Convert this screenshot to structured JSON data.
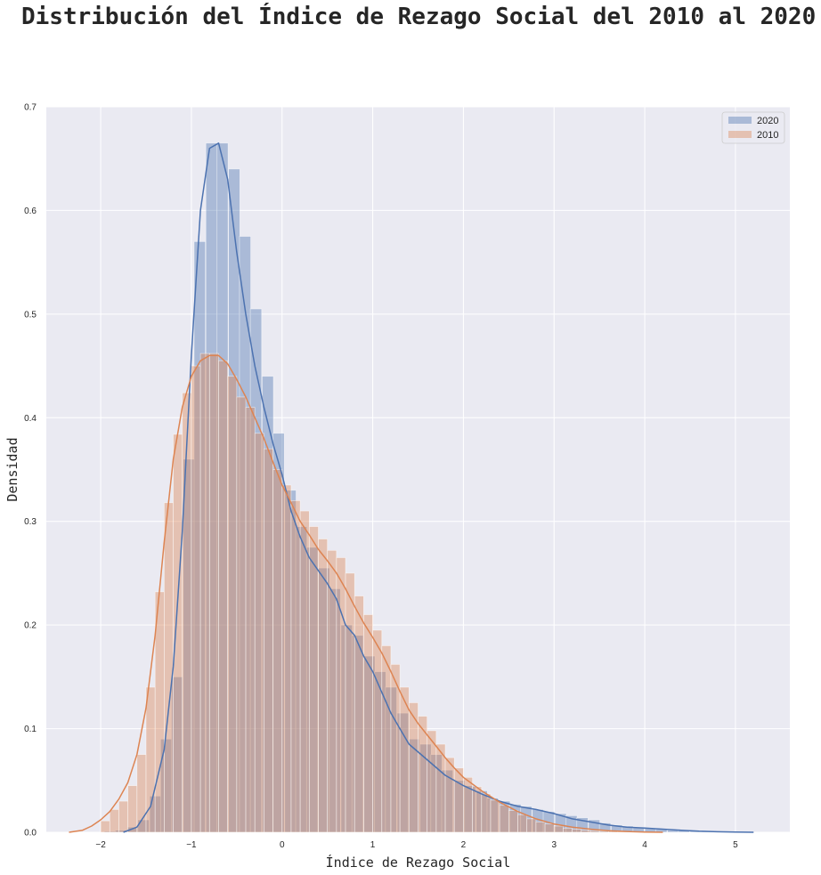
{
  "chart_data": {
    "type": "histogram",
    "title": "Distribución del Índice de Rezago Social del 2010 al 2020",
    "xlabel": "Índice de Rezago Social",
    "ylabel": "Densidad",
    "xlim": [
      -2.6,
      5.6
    ],
    "ylim": [
      0,
      0.7
    ],
    "xticks": [
      -2,
      -1,
      0,
      1,
      2,
      3,
      4,
      5
    ],
    "yticks": [
      0.0,
      0.1,
      0.2,
      0.3,
      0.4,
      0.5,
      0.6,
      0.7
    ],
    "grid": true,
    "legend_position": "top-right",
    "series": [
      {
        "name": "2020",
        "color": "#4c72b0",
        "bin_width": 0.1245,
        "bins": [
          {
            "x0": -1.96,
            "h": 0.001
          },
          {
            "x0": -1.84,
            "h": 0.002
          },
          {
            "x0": -1.71,
            "h": 0.005
          },
          {
            "x0": -1.59,
            "h": 0.012
          },
          {
            "x0": -1.46,
            "h": 0.035
          },
          {
            "x0": -1.34,
            "h": 0.09
          },
          {
            "x0": -1.22,
            "h": 0.15
          },
          {
            "x0": -1.09,
            "h": 0.36
          },
          {
            "x0": -0.97,
            "h": 0.57
          },
          {
            "x0": -0.84,
            "h": 0.665
          },
          {
            "x0": -0.72,
            "h": 0.665
          },
          {
            "x0": -0.59,
            "h": 0.64
          },
          {
            "x0": -0.47,
            "h": 0.575
          },
          {
            "x0": -0.35,
            "h": 0.505
          },
          {
            "x0": -0.22,
            "h": 0.44
          },
          {
            "x0": -0.1,
            "h": 0.385
          },
          {
            "x0": 0.03,
            "h": 0.33
          },
          {
            "x0": 0.15,
            "h": 0.295
          },
          {
            "x0": 0.27,
            "h": 0.275
          },
          {
            "x0": 0.4,
            "h": 0.255
          },
          {
            "x0": 0.52,
            "h": 0.235
          },
          {
            "x0": 0.65,
            "h": 0.2
          },
          {
            "x0": 0.77,
            "h": 0.19
          },
          {
            "x0": 0.9,
            "h": 0.17
          },
          {
            "x0": 1.02,
            "h": 0.155
          },
          {
            "x0": 1.14,
            "h": 0.14
          },
          {
            "x0": 1.27,
            "h": 0.115
          },
          {
            "x0": 1.39,
            "h": 0.09
          },
          {
            "x0": 1.52,
            "h": 0.085
          },
          {
            "x0": 1.64,
            "h": 0.075
          },
          {
            "x0": 1.76,
            "h": 0.06
          },
          {
            "x0": 1.89,
            "h": 0.05
          },
          {
            "x0": 2.01,
            "h": 0.045
          },
          {
            "x0": 2.14,
            "h": 0.04
          },
          {
            "x0": 2.26,
            "h": 0.033
          },
          {
            "x0": 2.39,
            "h": 0.03
          },
          {
            "x0": 2.51,
            "h": 0.027
          },
          {
            "x0": 2.63,
            "h": 0.025
          },
          {
            "x0": 2.76,
            "h": 0.022
          },
          {
            "x0": 2.88,
            "h": 0.02
          },
          {
            "x0": 3.01,
            "h": 0.018
          },
          {
            "x0": 3.13,
            "h": 0.016
          },
          {
            "x0": 3.25,
            "h": 0.014
          },
          {
            "x0": 3.38,
            "h": 0.012
          },
          {
            "x0": 3.5,
            "h": 0.009
          },
          {
            "x0": 3.63,
            "h": 0.007
          },
          {
            "x0": 3.75,
            "h": 0.006
          },
          {
            "x0": 3.87,
            "h": 0.005
          },
          {
            "x0": 4.0,
            "h": 0.004
          },
          {
            "x0": 4.12,
            "h": 0.003
          },
          {
            "x0": 4.25,
            "h": 0.002
          },
          {
            "x0": 4.37,
            "h": 0.002
          },
          {
            "x0": 4.5,
            "h": 0.001
          },
          {
            "x0": 4.62,
            "h": 0.001
          }
        ],
        "kde": [
          [
            -1.75,
            0.0
          ],
          [
            -1.6,
            0.005
          ],
          [
            -1.45,
            0.025
          ],
          [
            -1.3,
            0.08
          ],
          [
            -1.2,
            0.16
          ],
          [
            -1.1,
            0.29
          ],
          [
            -1.0,
            0.46
          ],
          [
            -0.9,
            0.6
          ],
          [
            -0.8,
            0.66
          ],
          [
            -0.7,
            0.665
          ],
          [
            -0.6,
            0.63
          ],
          [
            -0.5,
            0.56
          ],
          [
            -0.4,
            0.5
          ],
          [
            -0.3,
            0.45
          ],
          [
            -0.2,
            0.41
          ],
          [
            -0.1,
            0.375
          ],
          [
            0.0,
            0.345
          ],
          [
            0.1,
            0.31
          ],
          [
            0.2,
            0.285
          ],
          [
            0.3,
            0.265
          ],
          [
            0.5,
            0.24
          ],
          [
            0.6,
            0.225
          ],
          [
            0.7,
            0.2
          ],
          [
            0.8,
            0.19
          ],
          [
            0.9,
            0.17
          ],
          [
            1.0,
            0.155
          ],
          [
            1.1,
            0.135
          ],
          [
            1.2,
            0.115
          ],
          [
            1.3,
            0.1
          ],
          [
            1.4,
            0.085
          ],
          [
            1.6,
            0.07
          ],
          [
            1.8,
            0.055
          ],
          [
            2.0,
            0.045
          ],
          [
            2.2,
            0.037
          ],
          [
            2.4,
            0.03
          ],
          [
            2.6,
            0.025
          ],
          [
            2.8,
            0.022
          ],
          [
            3.0,
            0.018
          ],
          [
            3.2,
            0.013
          ],
          [
            3.4,
            0.01
          ],
          [
            3.6,
            0.007
          ],
          [
            3.8,
            0.005
          ],
          [
            4.0,
            0.004
          ],
          [
            4.2,
            0.003
          ],
          [
            4.4,
            0.002
          ],
          [
            4.6,
            0.001
          ],
          [
            4.8,
            0.0005
          ],
          [
            5.0,
            0.0002
          ],
          [
            5.2,
            0.0
          ]
        ]
      },
      {
        "name": "2010",
        "color": "#dd8452",
        "bin_width": 0.1,
        "bins": [
          {
            "x0": -2.0,
            "h": 0.011
          },
          {
            "x0": -1.9,
            "h": 0.022
          },
          {
            "x0": -1.8,
            "h": 0.03
          },
          {
            "x0": -1.7,
            "h": 0.045
          },
          {
            "x0": -1.6,
            "h": 0.075
          },
          {
            "x0": -1.5,
            "h": 0.14
          },
          {
            "x0": -1.4,
            "h": 0.232
          },
          {
            "x0": -1.3,
            "h": 0.318
          },
          {
            "x0": -1.2,
            "h": 0.384
          },
          {
            "x0": -1.1,
            "h": 0.424
          },
          {
            "x0": -1.0,
            "h": 0.45
          },
          {
            "x0": -0.9,
            "h": 0.462
          },
          {
            "x0": -0.8,
            "h": 0.462
          },
          {
            "x0": -0.7,
            "h": 0.455
          },
          {
            "x0": -0.6,
            "h": 0.44
          },
          {
            "x0": -0.5,
            "h": 0.42
          },
          {
            "x0": -0.4,
            "h": 0.41
          },
          {
            "x0": -0.3,
            "h": 0.385
          },
          {
            "x0": -0.2,
            "h": 0.37
          },
          {
            "x0": -0.1,
            "h": 0.35
          },
          {
            "x0": 0.0,
            "h": 0.335
          },
          {
            "x0": 0.1,
            "h": 0.32
          },
          {
            "x0": 0.2,
            "h": 0.31
          },
          {
            "x0": 0.3,
            "h": 0.295
          },
          {
            "x0": 0.4,
            "h": 0.283
          },
          {
            "x0": 0.5,
            "h": 0.272
          },
          {
            "x0": 0.6,
            "h": 0.265
          },
          {
            "x0": 0.7,
            "h": 0.25
          },
          {
            "x0": 0.8,
            "h": 0.228
          },
          {
            "x0": 0.9,
            "h": 0.21
          },
          {
            "x0": 1.0,
            "h": 0.195
          },
          {
            "x0": 1.1,
            "h": 0.18
          },
          {
            "x0": 1.2,
            "h": 0.162
          },
          {
            "x0": 1.3,
            "h": 0.14
          },
          {
            "x0": 1.4,
            "h": 0.125
          },
          {
            "x0": 1.5,
            "h": 0.112
          },
          {
            "x0": 1.6,
            "h": 0.098
          },
          {
            "x0": 1.7,
            "h": 0.085
          },
          {
            "x0": 1.8,
            "h": 0.072
          },
          {
            "x0": 1.9,
            "h": 0.062
          },
          {
            "x0": 2.0,
            "h": 0.053
          },
          {
            "x0": 2.1,
            "h": 0.044
          },
          {
            "x0": 2.2,
            "h": 0.037
          },
          {
            "x0": 2.3,
            "h": 0.031
          },
          {
            "x0": 2.4,
            "h": 0.026
          },
          {
            "x0": 2.5,
            "h": 0.021
          },
          {
            "x0": 2.6,
            "h": 0.017
          },
          {
            "x0": 2.7,
            "h": 0.013
          },
          {
            "x0": 2.8,
            "h": 0.01
          },
          {
            "x0": 2.9,
            "h": 0.008
          },
          {
            "x0": 3.0,
            "h": 0.006
          },
          {
            "x0": 3.1,
            "h": 0.004
          },
          {
            "x0": 3.2,
            "h": 0.003
          },
          {
            "x0": 3.3,
            "h": 0.002
          },
          {
            "x0": 3.4,
            "h": 0.0015
          },
          {
            "x0": 3.5,
            "h": 0.001
          },
          {
            "x0": 3.6,
            "h": 0.001
          },
          {
            "x0": 3.7,
            "h": 0.0005
          }
        ],
        "kde": [
          [
            -2.35,
            0.0
          ],
          [
            -2.2,
            0.002
          ],
          [
            -2.1,
            0.006
          ],
          [
            -2.0,
            0.012
          ],
          [
            -1.9,
            0.02
          ],
          [
            -1.8,
            0.032
          ],
          [
            -1.7,
            0.048
          ],
          [
            -1.6,
            0.075
          ],
          [
            -1.5,
            0.12
          ],
          [
            -1.4,
            0.19
          ],
          [
            -1.3,
            0.28
          ],
          [
            -1.2,
            0.36
          ],
          [
            -1.1,
            0.41
          ],
          [
            -1.0,
            0.44
          ],
          [
            -0.9,
            0.455
          ],
          [
            -0.8,
            0.46
          ],
          [
            -0.7,
            0.46
          ],
          [
            -0.6,
            0.452
          ],
          [
            -0.5,
            0.437
          ],
          [
            -0.4,
            0.42
          ],
          [
            -0.3,
            0.4
          ],
          [
            -0.2,
            0.38
          ],
          [
            -0.1,
            0.357
          ],
          [
            0.0,
            0.335
          ],
          [
            0.1,
            0.318
          ],
          [
            0.2,
            0.3
          ],
          [
            0.3,
            0.287
          ],
          [
            0.4,
            0.273
          ],
          [
            0.5,
            0.262
          ],
          [
            0.6,
            0.25
          ],
          [
            0.7,
            0.235
          ],
          [
            0.8,
            0.218
          ],
          [
            0.9,
            0.202
          ],
          [
            1.0,
            0.188
          ],
          [
            1.1,
            0.173
          ],
          [
            1.2,
            0.155
          ],
          [
            1.3,
            0.136
          ],
          [
            1.4,
            0.118
          ],
          [
            1.5,
            0.105
          ],
          [
            1.6,
            0.094
          ],
          [
            1.7,
            0.083
          ],
          [
            1.8,
            0.072
          ],
          [
            1.9,
            0.062
          ],
          [
            2.0,
            0.053
          ],
          [
            2.2,
            0.04
          ],
          [
            2.4,
            0.029
          ],
          [
            2.6,
            0.02
          ],
          [
            2.8,
            0.013
          ],
          [
            3.0,
            0.008
          ],
          [
            3.2,
            0.005
          ],
          [
            3.4,
            0.003
          ],
          [
            3.6,
            0.0015
          ],
          [
            3.8,
            0.0008
          ],
          [
            4.0,
            0.0003
          ],
          [
            4.2,
            0.0
          ]
        ]
      }
    ]
  }
}
